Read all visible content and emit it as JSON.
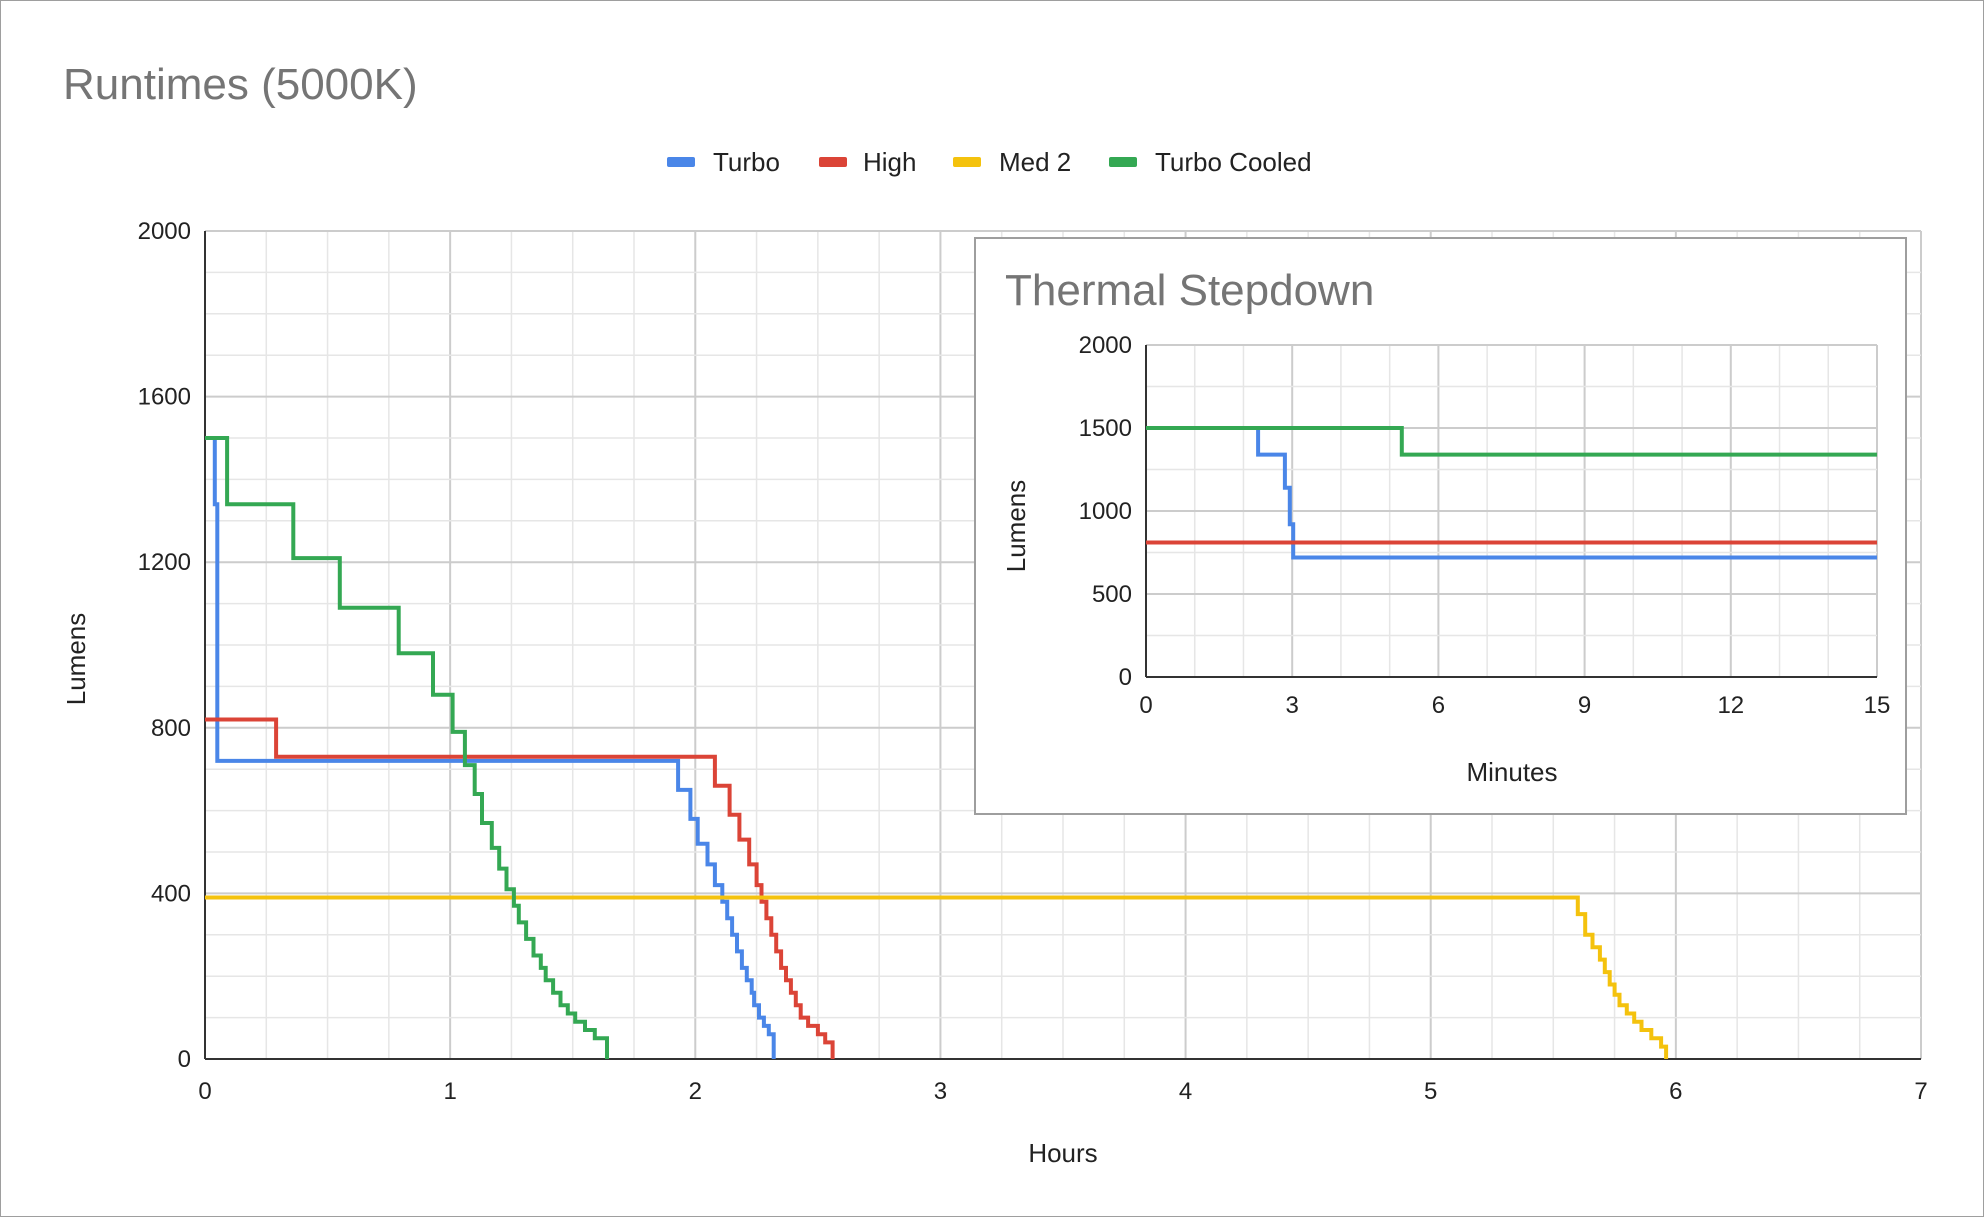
{
  "chart_data": [
    {
      "type": "line",
      "title": "Runtimes (5000K)",
      "xlabel": "Hours",
      "ylabel": "Lumens",
      "xlim": [
        0,
        7
      ],
      "ylim": [
        0,
        2000
      ],
      "xticks": [
        "0",
        "1",
        "2",
        "3",
        "4",
        "5",
        "6",
        "7"
      ],
      "yticks": [
        "0",
        "400",
        "800",
        "1200",
        "1600",
        "2000"
      ],
      "legend_position": "top",
      "series": [
        {
          "name": "Turbo",
          "color": "#4a86e8",
          "points": [
            [
              0,
              1500
            ],
            [
              0.04,
              1500
            ],
            [
              0.04,
              1340
            ],
            [
              0.05,
              1340
            ],
            [
              0.05,
              720
            ],
            [
              1.93,
              720
            ],
            [
              1.93,
              650
            ],
            [
              1.98,
              650
            ],
            [
              1.98,
              580
            ],
            [
              2.01,
              580
            ],
            [
              2.01,
              520
            ],
            [
              2.05,
              520
            ],
            [
              2.05,
              470
            ],
            [
              2.08,
              470
            ],
            [
              2.08,
              420
            ],
            [
              2.11,
              420
            ],
            [
              2.11,
              380
            ],
            [
              2.13,
              380
            ],
            [
              2.13,
              340
            ],
            [
              2.15,
              340
            ],
            [
              2.15,
              300
            ],
            [
              2.17,
              300
            ],
            [
              2.17,
              260
            ],
            [
              2.19,
              260
            ],
            [
              2.19,
              220
            ],
            [
              2.21,
              220
            ],
            [
              2.21,
              190
            ],
            [
              2.23,
              190
            ],
            [
              2.23,
              160
            ],
            [
              2.24,
              160
            ],
            [
              2.24,
              130
            ],
            [
              2.26,
              130
            ],
            [
              2.26,
              100
            ],
            [
              2.28,
              100
            ],
            [
              2.28,
              80
            ],
            [
              2.3,
              80
            ],
            [
              2.3,
              60
            ],
            [
              2.32,
              60
            ],
            [
              2.32,
              0
            ]
          ]
        },
        {
          "name": "High",
          "color": "#db4437",
          "points": [
            [
              0,
              820
            ],
            [
              0.29,
              820
            ],
            [
              0.29,
              730
            ],
            [
              2.08,
              730
            ],
            [
              2.08,
              660
            ],
            [
              2.14,
              660
            ],
            [
              2.14,
              590
            ],
            [
              2.18,
              590
            ],
            [
              2.18,
              530
            ],
            [
              2.22,
              530
            ],
            [
              2.22,
              470
            ],
            [
              2.25,
              470
            ],
            [
              2.25,
              420
            ],
            [
              2.27,
              420
            ],
            [
              2.27,
              380
            ],
            [
              2.29,
              380
            ],
            [
              2.29,
              340
            ],
            [
              2.31,
              340
            ],
            [
              2.31,
              300
            ],
            [
              2.33,
              300
            ],
            [
              2.33,
              260
            ],
            [
              2.35,
              260
            ],
            [
              2.35,
              220
            ],
            [
              2.37,
              220
            ],
            [
              2.37,
              190
            ],
            [
              2.39,
              190
            ],
            [
              2.39,
              160
            ],
            [
              2.41,
              160
            ],
            [
              2.41,
              130
            ],
            [
              2.43,
              130
            ],
            [
              2.43,
              100
            ],
            [
              2.46,
              100
            ],
            [
              2.46,
              80
            ],
            [
              2.5,
              80
            ],
            [
              2.5,
              60
            ],
            [
              2.53,
              60
            ],
            [
              2.53,
              40
            ],
            [
              2.56,
              40
            ],
            [
              2.56,
              0
            ]
          ]
        },
        {
          "name": "Med 2",
          "color": "#f4c20d",
          "points": [
            [
              0,
              390
            ],
            [
              5.6,
              390
            ],
            [
              5.6,
              350
            ],
            [
              5.63,
              350
            ],
            [
              5.63,
              300
            ],
            [
              5.66,
              300
            ],
            [
              5.66,
              270
            ],
            [
              5.69,
              270
            ],
            [
              5.69,
              240
            ],
            [
              5.71,
              240
            ],
            [
              5.71,
              210
            ],
            [
              5.73,
              210
            ],
            [
              5.73,
              180
            ],
            [
              5.75,
              180
            ],
            [
              5.75,
              155
            ],
            [
              5.77,
              155
            ],
            [
              5.77,
              130
            ],
            [
              5.8,
              130
            ],
            [
              5.8,
              110
            ],
            [
              5.83,
              110
            ],
            [
              5.83,
              90
            ],
            [
              5.86,
              90
            ],
            [
              5.86,
              70
            ],
            [
              5.9,
              70
            ],
            [
              5.9,
              50
            ],
            [
              5.94,
              50
            ],
            [
              5.94,
              30
            ],
            [
              5.96,
              30
            ],
            [
              5.96,
              0
            ]
          ]
        },
        {
          "name": "Turbo Cooled",
          "color": "#34a853",
          "points": [
            [
              0,
              1500
            ],
            [
              0.09,
              1500
            ],
            [
              0.09,
              1340
            ],
            [
              0.36,
              1340
            ],
            [
              0.36,
              1210
            ],
            [
              0.55,
              1210
            ],
            [
              0.55,
              1090
            ],
            [
              0.79,
              1090
            ],
            [
              0.79,
              980
            ],
            [
              0.93,
              980
            ],
            [
              0.93,
              880
            ],
            [
              1.01,
              880
            ],
            [
              1.01,
              790
            ],
            [
              1.06,
              790
            ],
            [
              1.06,
              710
            ],
            [
              1.1,
              710
            ],
            [
              1.1,
              640
            ],
            [
              1.13,
              640
            ],
            [
              1.13,
              570
            ],
            [
              1.17,
              570
            ],
            [
              1.17,
              510
            ],
            [
              1.2,
              510
            ],
            [
              1.2,
              460
            ],
            [
              1.23,
              460
            ],
            [
              1.23,
              410
            ],
            [
              1.26,
              410
            ],
            [
              1.26,
              370
            ],
            [
              1.28,
              370
            ],
            [
              1.28,
              330
            ],
            [
              1.31,
              330
            ],
            [
              1.31,
              290
            ],
            [
              1.34,
              290
            ],
            [
              1.34,
              250
            ],
            [
              1.37,
              250
            ],
            [
              1.37,
              220
            ],
            [
              1.39,
              220
            ],
            [
              1.39,
              190
            ],
            [
              1.42,
              190
            ],
            [
              1.42,
              160
            ],
            [
              1.45,
              160
            ],
            [
              1.45,
              130
            ],
            [
              1.48,
              130
            ],
            [
              1.48,
              110
            ],
            [
              1.51,
              110
            ],
            [
              1.51,
              90
            ],
            [
              1.55,
              90
            ],
            [
              1.55,
              70
            ],
            [
              1.59,
              70
            ],
            [
              1.59,
              50
            ],
            [
              1.64,
              50
            ],
            [
              1.64,
              0
            ]
          ]
        }
      ]
    },
    {
      "type": "line",
      "title": "Thermal Stepdown",
      "xlabel": "Minutes",
      "ylabel": "Lumens",
      "xlim": [
        0,
        15
      ],
      "ylim": [
        0,
        2000
      ],
      "xticks": [
        "0",
        "3",
        "6",
        "9",
        "12",
        "15"
      ],
      "yticks": [
        "0",
        "500",
        "1000",
        "1500",
        "2000"
      ],
      "series": [
        {
          "name": "Turbo",
          "color": "#4a86e8",
          "points": [
            [
              0,
              1500
            ],
            [
              2.3,
              1500
            ],
            [
              2.3,
              1340
            ],
            [
              2.85,
              1340
            ],
            [
              2.85,
              1140
            ],
            [
              2.95,
              1140
            ],
            [
              2.95,
              920
            ],
            [
              3.02,
              920
            ],
            [
              3.02,
              720
            ],
            [
              15,
              720
            ]
          ]
        },
        {
          "name": "High",
          "color": "#db4437",
          "points": [
            [
              0,
              810
            ],
            [
              15,
              810
            ]
          ]
        },
        {
          "name": "Turbo Cooled",
          "color": "#34a853",
          "points": [
            [
              0,
              1500
            ],
            [
              5.25,
              1500
            ],
            [
              5.25,
              1340
            ],
            [
              15,
              1340
            ]
          ]
        }
      ]
    }
  ]
}
